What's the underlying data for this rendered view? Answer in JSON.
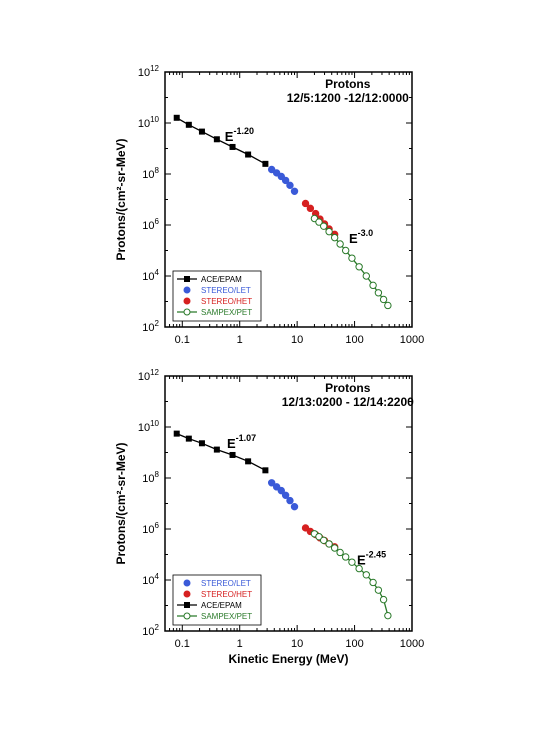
{
  "chart_data": [
    {
      "type": "scatter",
      "title": "Protons",
      "subtitle": "12/5:1200 -12/12:0000",
      "xlabel": "",
      "ylabel": "Protons/(cm²-sr-MeV)",
      "x_scale": "log",
      "y_scale": "log",
      "xlim": [
        0.05,
        1000
      ],
      "ylim": [
        100,
        1000000000000.0
      ],
      "x_ticks": [
        0.1,
        1,
        10,
        100,
        1000
      ],
      "x_tick_labels": [
        "0.1",
        "1",
        "10",
        "100",
        "1000"
      ],
      "y_ticks": [
        100,
        10000,
        1000000,
        100000000,
        10000000000,
        1000000000000
      ],
      "y_tick_base": "10",
      "y_tick_exponents": [
        "2",
        "4",
        "6",
        "8",
        "10",
        "12"
      ],
      "grid": false,
      "legend_position": "lower-left",
      "annotations": [
        {
          "base": "E",
          "exponent": "-1.20",
          "x": 0.55,
          "y": 2000000000.0
        },
        {
          "base": "E",
          "exponent": "-3.0",
          "x": 80,
          "y": 200000.0
        }
      ],
      "series": [
        {
          "name": "ACE/EPAM",
          "color": "#000000",
          "marker": "square",
          "filled": true,
          "line": true,
          "x": [
            0.08,
            0.13,
            0.22,
            0.4,
            0.75,
            1.4,
            2.8
          ],
          "y": [
            16000000000.0,
            8500000000.0,
            4600000000.0,
            2300000000.0,
            1150000000.0,
            580000000.0,
            250000000.0
          ]
        },
        {
          "name": "STEREO/LET",
          "color": "#3a5ad8",
          "marker": "circle",
          "filled": true,
          "line": false,
          "x": [
            3.6,
            4.4,
            5.3,
            6.3,
            7.5,
            9.0
          ],
          "y": [
            150000000.0,
            110000000.0,
            80000000.0,
            56000000.0,
            36000000.0,
            21000000.0
          ]
        },
        {
          "name": "STEREO/HET",
          "color": "#d62020",
          "marker": "circle",
          "filled": true,
          "line": false,
          "x": [
            14,
            17,
            21,
            25,
            30,
            36,
            45
          ],
          "y": [
            7000000.0,
            4500000.0,
            2800000.0,
            1700000.0,
            1100000.0,
            700000.0,
            430000.0
          ]
        },
        {
          "name": "SAMPEX/PET",
          "color": "#2a7a2a",
          "marker": "circle",
          "filled": false,
          "line": true,
          "x": [
            20,
            24,
            29,
            36,
            45,
            56,
            70,
            90,
            120,
            160,
            210,
            260,
            320,
            380
          ],
          "y": [
            1800000.0,
            1300000.0,
            900000.0,
            550000.0,
            320000.0,
            180000.0,
            100000.0,
            50000.0,
            23000.0,
            10000.0,
            4300.0,
            2200.0,
            1200.0,
            700.0
          ]
        }
      ]
    },
    {
      "type": "scatter",
      "title": "Protons",
      "subtitle": "12/13:0200 - 12/14:2200",
      "xlabel": "Kinetic Energy (MeV)",
      "ylabel": "Protons/(cm²-sr-MeV)",
      "x_scale": "log",
      "y_scale": "log",
      "xlim": [
        0.05,
        1000
      ],
      "ylim": [
        100,
        1000000000000.0
      ],
      "x_ticks": [
        0.1,
        1,
        10,
        100,
        1000
      ],
      "x_tick_labels": [
        "0.1",
        "1",
        "10",
        "100",
        "1000"
      ],
      "y_ticks": [
        100,
        10000,
        1000000,
        100000000,
        10000000000,
        1000000000000
      ],
      "y_tick_base": "10",
      "y_tick_exponents": [
        "2",
        "4",
        "6",
        "8",
        "10",
        "12"
      ],
      "grid": false,
      "legend_position": "lower-left",
      "annotations": [
        {
          "base": "E",
          "exponent": "-1.07",
          "x": 0.6,
          "y": 1500000000.0
        },
        {
          "base": "E",
          "exponent": "-2.45",
          "x": 110,
          "y": 40000.0
        }
      ],
      "series": [
        {
          "name": "STEREO/LET",
          "color": "#3a5ad8",
          "marker": "circle",
          "filled": true,
          "line": false,
          "x": [
            3.6,
            4.4,
            5.3,
            6.3,
            7.5,
            9.0
          ],
          "y": [
            65000000.0,
            45000000.0,
            32000000.0,
            21000000.0,
            13000000.0,
            7500000.0
          ]
        },
        {
          "name": "STEREO/HET",
          "color": "#d62020",
          "marker": "circle",
          "filled": true,
          "line": false,
          "x": [
            14,
            17,
            21,
            25,
            30,
            36,
            45
          ],
          "y": [
            1100000.0,
            800000.0,
            600000.0,
            450000.0,
            350000.0,
            260000.0,
            200000.0
          ]
        },
        {
          "name": "ACE/EPAM",
          "color": "#000000",
          "marker": "square",
          "filled": true,
          "line": true,
          "x": [
            0.08,
            0.13,
            0.22,
            0.4,
            0.75,
            1.4,
            2.8
          ],
          "y": [
            5500000000.0,
            3500000000.0,
            2300000000.0,
            1300000000.0,
            800000000.0,
            450000000.0,
            200000000.0
          ]
        },
        {
          "name": "SAMPEX/PET",
          "color": "#2a7a2a",
          "marker": "circle",
          "filled": false,
          "line": true,
          "x": [
            20,
            24,
            29,
            36,
            45,
            56,
            70,
            90,
            120,
            160,
            210,
            260,
            320,
            380
          ],
          "y": [
            650000.0,
            500000.0,
            360000.0,
            260000.0,
            180000.0,
            120000.0,
            80000.0,
            50000.0,
            28000.0,
            16000.0,
            8000.0,
            4000.0,
            1700.0,
            400.0
          ]
        }
      ]
    }
  ]
}
